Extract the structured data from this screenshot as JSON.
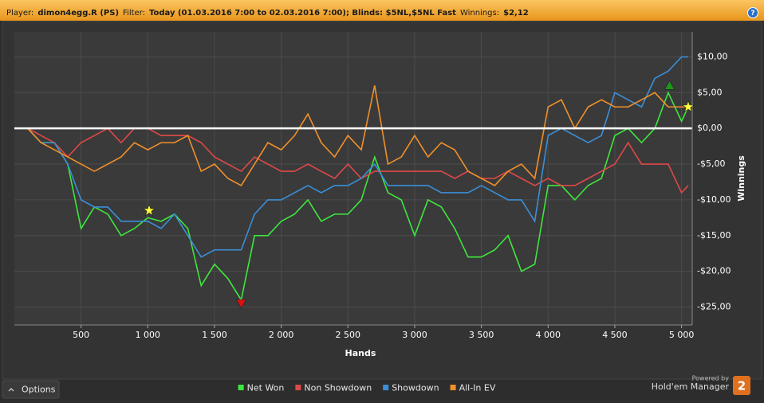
{
  "header": {
    "player_label": "Player:",
    "player": "dimon4egg.R (PS)",
    "filter_label": "Filter:",
    "filter": "Today (01.03.2016 7:00 to 02.03.2016 7:00); Blinds: $5NL,$5NL Fast",
    "winnings_label": "Winnings:",
    "winnings": "$2,12",
    "help": "?"
  },
  "footer": {
    "options": "Options",
    "powered_by": "Powered by",
    "brand": "Hold'em Manager",
    "brand_version": "2"
  },
  "chart_data": {
    "type": "line",
    "x_label": "Hands",
    "y_label": "Winnings",
    "xlim": [
      0,
      5080
    ],
    "ylim": [
      -27.5,
      13.5
    ],
    "xticks": [
      500,
      {
        "value": 1000,
        "label": "1 000"
      },
      {
        "value": 1500,
        "label": "1 500"
      },
      {
        "value": 2000,
        "label": "2 000"
      },
      {
        "value": 2500,
        "label": "2 500"
      },
      {
        "value": 3000,
        "label": "3 000"
      },
      {
        "value": 3500,
        "label": "3 500"
      },
      {
        "value": 4000,
        "label": "4 000"
      },
      {
        "value": 4500,
        "label": "4 500"
      },
      {
        "value": 5000,
        "label": "5 000"
      }
    ],
    "yticks": [
      {
        "value": 10,
        "label": "$10,00"
      },
      {
        "value": 5,
        "label": "$5,00"
      },
      {
        "value": 0,
        "label": "$0,00"
      },
      {
        "value": -5,
        "label": "-$5,00"
      },
      {
        "value": -10,
        "label": "-$10,00"
      },
      {
        "value": -15,
        "label": "-$15,00"
      },
      {
        "value": -20,
        "label": "-$20,00"
      },
      {
        "value": -25,
        "label": "-$25,00"
      }
    ],
    "grid": true,
    "zero_line": true,
    "y_axis_side": "right",
    "legend": "bottom",
    "x": [
      0,
      100,
      200,
      300,
      400,
      500,
      600,
      700,
      800,
      900,
      1000,
      1100,
      1200,
      1300,
      1400,
      1500,
      1600,
      1700,
      1800,
      1900,
      2000,
      2100,
      2200,
      2300,
      2400,
      2500,
      2600,
      2700,
      2800,
      2900,
      3000,
      3100,
      3200,
      3300,
      3400,
      3500,
      3600,
      3700,
      3800,
      3900,
      4000,
      4100,
      4200,
      4300,
      4400,
      4500,
      4600,
      4700,
      4800,
      4900,
      5000,
      5050
    ],
    "series": [
      {
        "name": "Net Won",
        "color": "#3ee63e",
        "values": [
          0,
          0,
          -2,
          -2,
          -5,
          -14,
          -11,
          -12,
          -15,
          -14,
          -12.5,
          -13,
          -12,
          -14,
          -22,
          -19,
          -21,
          -24,
          -15,
          -15,
          -13,
          -12,
          -10,
          -13,
          -12,
          -12,
          -10,
          -4,
          -9,
          -10,
          -15,
          -10,
          -11,
          -14,
          -18,
          -18,
          -17,
          -15,
          -20,
          -19,
          -8,
          -8,
          -10,
          -8,
          -7,
          -1,
          0,
          -2,
          0,
          5,
          1,
          3
        ]
      },
      {
        "name": "Non Showdown",
        "color": "#e04848",
        "values": [
          0,
          0,
          -1,
          -2,
          -4,
          -2,
          -1,
          0,
          -2,
          0,
          0,
          -1,
          -1,
          -1,
          -2,
          -4,
          -5,
          -6,
          -4,
          -5,
          -6,
          -6,
          -5,
          -6,
          -7,
          -5,
          -7,
          -6,
          -6,
          -6,
          -6,
          -6,
          -6,
          -7,
          -6,
          -7,
          -7,
          -6,
          -7,
          -8,
          -7,
          -8,
          -8,
          -7,
          -6,
          -5,
          -2,
          -5,
          -5,
          -5,
          -9,
          -8
        ]
      },
      {
        "name": "Showdown",
        "color": "#3a8fd8",
        "values": [
          0,
          0,
          -2,
          -2,
          -5,
          -10,
          -11,
          -11,
          -13,
          -13,
          -13,
          -14,
          -12,
          -15,
          -18,
          -17,
          -17,
          -17,
          -12,
          -10,
          -10,
          -9,
          -8,
          -9,
          -8,
          -8,
          -7,
          -5,
          -8,
          -8,
          -8,
          -8,
          -9,
          -9,
          -9,
          -8,
          -9,
          -10,
          -10,
          -13,
          -1,
          0,
          -1,
          -2,
          -1,
          5,
          4,
          3,
          7,
          8,
          10,
          10
        ]
      },
      {
        "name": "All-In EV",
        "color": "#f0902a",
        "values": [
          0,
          0,
          -2,
          -3,
          -4,
          -5,
          -6,
          -5,
          -4,
          -2,
          -3,
          -2,
          -2,
          -1,
          -6,
          -5,
          -7,
          -8,
          -5,
          -2,
          -3,
          -1,
          2,
          -2,
          -4,
          -1,
          -3,
          6,
          -5,
          -4,
          -1,
          -4,
          -2,
          -3,
          -6,
          -7,
          -8,
          -6,
          -5,
          -7,
          3,
          4,
          0,
          3,
          4,
          3,
          3,
          4,
          5,
          3,
          3,
          3
        ]
      }
    ],
    "markers": [
      {
        "shape": "star",
        "color": "#ffff33",
        "x": 1010,
        "y": -11.5
      },
      {
        "shape": "triangle-down",
        "color": "#e01010",
        "x": 1700,
        "y": -24.5
      },
      {
        "shape": "triangle-up",
        "color": "#1a9a1a",
        "x": 4910,
        "y": 6
      },
      {
        "shape": "star",
        "color": "#ffff33",
        "x": 5050,
        "y": 3
      }
    ]
  }
}
